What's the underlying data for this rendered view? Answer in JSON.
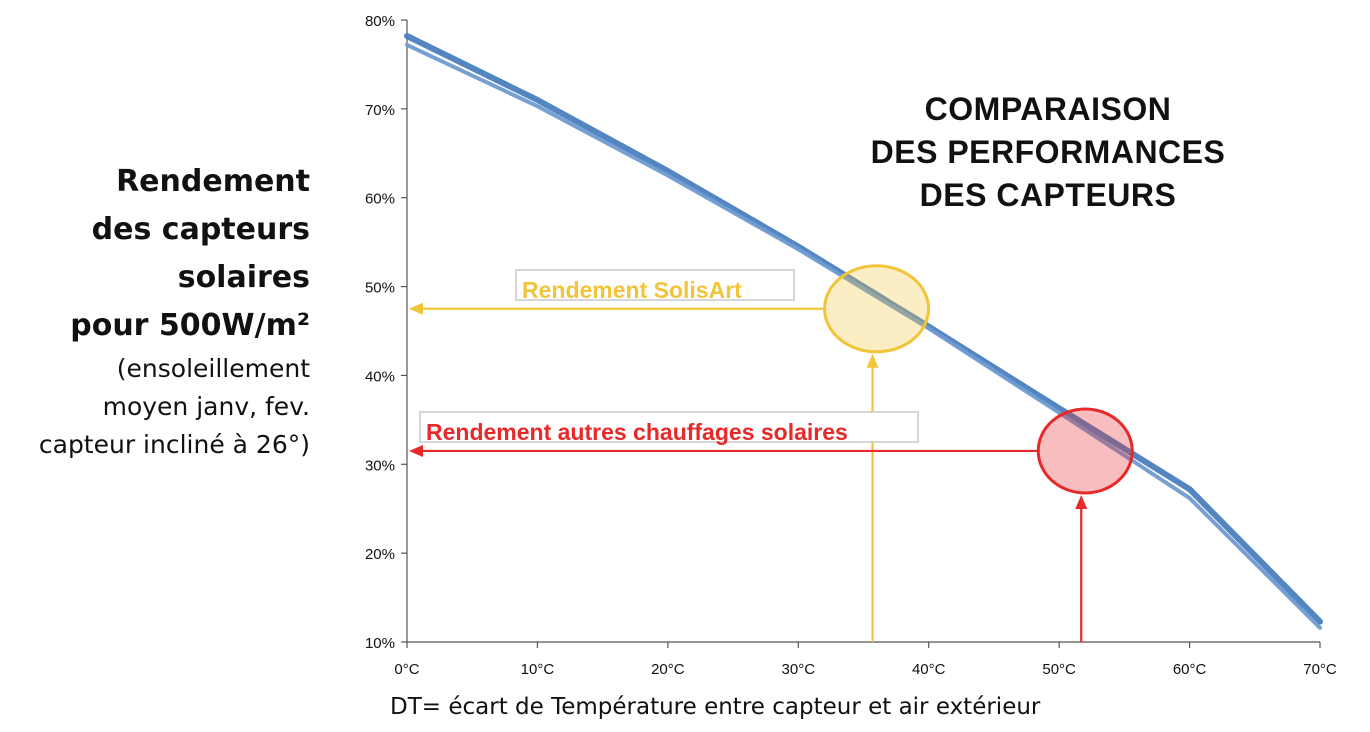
{
  "chart_data": {
    "type": "line",
    "title": [
      "COMPARAISON",
      "DES PERFORMANCES",
      "DES CAPTEURS"
    ],
    "ylabel": {
      "bold_lines": [
        "Rendement",
        "des capteurs",
        "solaires",
        "pour 500W/m²"
      ],
      "normal_lines": [
        "(ensoleillement",
        "moyen janv, fev.",
        "capteur incliné à 26°)"
      ]
    },
    "xlabel": "DT= écart de Température entre capteur et air extérieur",
    "xlim": [
      0,
      70
    ],
    "ylim": [
      10,
      80
    ],
    "x_ticks": [
      0,
      10,
      20,
      30,
      40,
      50,
      60,
      70
    ],
    "x_tick_labels": [
      "0°C",
      "10°C",
      "20°C",
      "30°C",
      "40°C",
      "50°C",
      "60°C",
      "70°C"
    ],
    "y_ticks": [
      10,
      20,
      30,
      40,
      50,
      60,
      70,
      80
    ],
    "y_tick_labels": [
      "10%",
      "20%",
      "30%",
      "40%",
      "50%",
      "60%",
      "70%",
      "80%"
    ],
    "grid": false,
    "series": [
      {
        "x": [
          0,
          10,
          20,
          30,
          40,
          50,
          60,
          70
        ],
        "y": [
          78.2,
          71.0,
          63.0,
          54.5,
          45.5,
          36.3,
          27.2,
          12.3
        ],
        "color": "#4a7fbe"
      },
      {
        "x": [
          0,
          10,
          20,
          30,
          40,
          50,
          60,
          70
        ],
        "y": [
          77.2,
          70.3,
          62.5,
          54.2,
          45.3,
          35.8,
          26.2,
          11.6
        ],
        "color": "#6f9bd1"
      }
    ],
    "annotations": [
      {
        "label": "Rendement SolisArt",
        "color": "#f2c43a",
        "x": 36,
        "y": 47.5
      },
      {
        "label": "Rendement autres chauffages solaires",
        "color": "#e8292a",
        "x": 52,
        "y": 31.5
      }
    ]
  }
}
